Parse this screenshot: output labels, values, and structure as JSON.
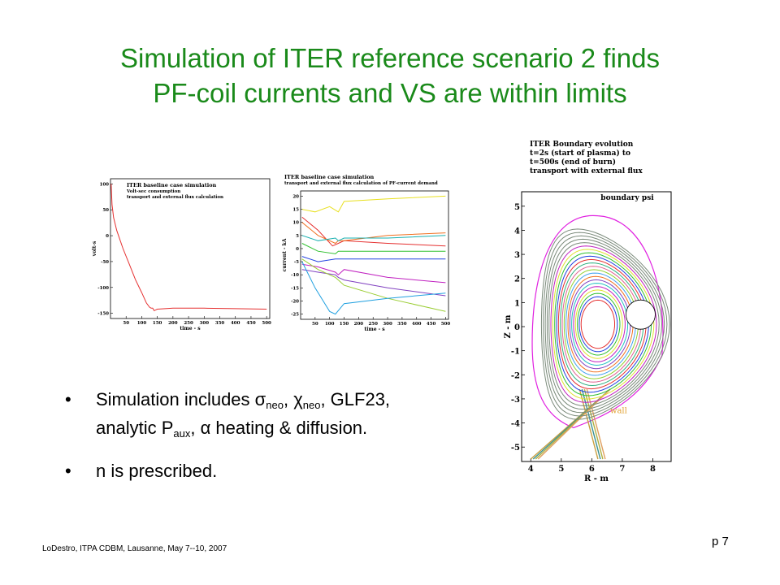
{
  "slide": {
    "title_line1": "Simulation of ITER reference scenario 2 finds",
    "title_line2": "PF-coil currents and VS are within limits",
    "bullets": {
      "b1_pre": "Simulation includes ",
      "sigma": "σ",
      "neo": "neo",
      "comma1": ", ",
      "chi": "χ",
      "neo2": "neo",
      "b1_post": ", GLF23,",
      "b1_line2_pre": "analytic P",
      "aux": "aux",
      "b1_line2_mid": ", ",
      "alpha": "α",
      "b1_line2_post": " heating & diffusion.",
      "b2": "n is prescribed."
    },
    "footer": "LoDestro, ITPA CDBM, Lausanne, May 7--10, 2007",
    "page": "p 7",
    "bullet_glyph": "•"
  },
  "colors": {
    "title": "#1a8a1a"
  },
  "chart_data": [
    {
      "type": "line",
      "title": "ITER baseline case simulation",
      "subtitle": [
        "Volt-sec consumption",
        "transport and external flux calculation"
      ],
      "xlabel": "time - s",
      "ylabel": "volt-s",
      "xticks": [
        50,
        100,
        150,
        200,
        250,
        300,
        350,
        400,
        450,
        500
      ],
      "yticks": [
        100,
        50,
        0,
        -50,
        -100,
        -150
      ],
      "xlim": [
        0,
        510
      ],
      "ylim": [
        -160,
        110
      ],
      "series": [
        {
          "color": "#e53030",
          "x": [
            2,
            5,
            10,
            20,
            40,
            60,
            80,
            100,
            115,
            125,
            130,
            135,
            140,
            150,
            200,
            300,
            400,
            500
          ],
          "y": [
            100,
            60,
            35,
            10,
            -25,
            -55,
            -85,
            -110,
            -130,
            -138,
            -140,
            -140,
            -145,
            -142,
            -140,
            -140,
            -141,
            -142
          ]
        }
      ]
    },
    {
      "type": "line",
      "title": "ITER baseline case simulation",
      "subtitle": [
        "transport and external flux calculation of PF-current demand"
      ],
      "xlabel": "time - s",
      "ylabel": "current - kA",
      "xticks": [
        50,
        100,
        150,
        200,
        250,
        300,
        350,
        400,
        450,
        500
      ],
      "yticks": [
        20,
        15,
        10,
        5,
        0,
        -5,
        -10,
        -15,
        -20,
        -25
      ],
      "xlim": [
        0,
        510
      ],
      "ylim": [
        -27,
        22
      ],
      "series": [
        {
          "color": "#e8e020",
          "x": [
            5,
            50,
            100,
            130,
            150,
            300,
            500
          ],
          "y": [
            15,
            14,
            16,
            14,
            18,
            19,
            20
          ]
        },
        {
          "color": "#e53030",
          "x": [
            5,
            60,
            110,
            130,
            150,
            300,
            500
          ],
          "y": [
            12,
            7,
            1,
            2,
            3,
            2,
            1
          ]
        },
        {
          "color": "#f07020",
          "x": [
            5,
            60,
            120,
            130,
            150,
            300,
            500
          ],
          "y": [
            10,
            5,
            2,
            3,
            3,
            5,
            6
          ]
        },
        {
          "color": "#1ab0b0",
          "x": [
            5,
            60,
            120,
            130,
            150,
            300,
            500
          ],
          "y": [
            5,
            3,
            4,
            3,
            4,
            4,
            5
          ]
        },
        {
          "color": "#30c030",
          "x": [
            5,
            60,
            120,
            130,
            150,
            300,
            500
          ],
          "y": [
            2,
            -1,
            -2,
            -1,
            -1,
            -1,
            -1
          ]
        },
        {
          "color": "#2040e0",
          "x": [
            5,
            60,
            120,
            130,
            150,
            300,
            500
          ],
          "y": [
            -3,
            -5,
            -4,
            -4,
            -4,
            -4,
            -4
          ]
        },
        {
          "color": "#c020c0",
          "x": [
            5,
            60,
            120,
            130,
            150,
            300,
            500
          ],
          "y": [
            -6,
            -7,
            -9,
            -10,
            -8,
            -11,
            -13
          ]
        },
        {
          "color": "#8040c0",
          "x": [
            5,
            60,
            120,
            130,
            150,
            300,
            500
          ],
          "y": [
            -8,
            -9,
            -10,
            -11,
            -12,
            -15,
            -18
          ]
        },
        {
          "color": "#9acd32",
          "x": [
            5,
            60,
            120,
            130,
            150,
            300,
            500
          ],
          "y": [
            -4,
            -8,
            -11,
            -12,
            -14,
            -19,
            -24
          ]
        },
        {
          "color": "#20a0e0",
          "x": [
            5,
            50,
            100,
            120,
            150,
            300,
            500
          ],
          "y": [
            -5,
            -15,
            -24,
            -25,
            -21,
            -19,
            -17
          ]
        }
      ]
    },
    {
      "type": "line",
      "title": "ITER Boundary evolution",
      "subtitle": [
        "t=2s (start of plasma) to",
        "t=500s (end of burn)",
        "transport with external flux"
      ],
      "annotations": [
        "boundary psi",
        "wall"
      ],
      "xlabel": "R - m",
      "ylabel": "Z - m",
      "xticks": [
        4,
        5,
        6,
        7,
        8
      ],
      "yticks": [
        5,
        4,
        3,
        2,
        1,
        0,
        -1,
        -2,
        -3,
        -4,
        -5
      ],
      "xlim": [
        3.7,
        8.6
      ],
      "ylim": [
        -5.6,
        5.6
      ]
    }
  ]
}
